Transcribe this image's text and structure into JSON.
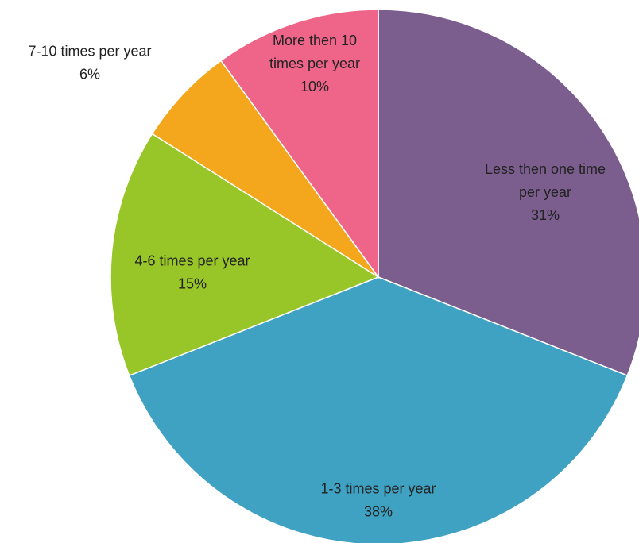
{
  "chart_data": {
    "type": "pie",
    "title": "",
    "start_angle_deg": 0,
    "direction": "clockwise",
    "slices": [
      {
        "label_lines": [
          "Less then one time",
          "per year"
        ],
        "percent_label": "31%",
        "value": 31,
        "color": "#7b5e8e"
      },
      {
        "label_lines": [
          "1-3 times per year"
        ],
        "percent_label": "38%",
        "value": 38,
        "color": "#3fa2c2"
      },
      {
        "label_lines": [
          "4-6 times per year"
        ],
        "percent_label": "15%",
        "value": 15,
        "color": "#98c528"
      },
      {
        "label_lines": [
          "7-10 times per year"
        ],
        "percent_label": "6%",
        "value": 6,
        "color": "#f4a71d"
      },
      {
        "label_lines": [
          "More then 10",
          "times per year"
        ],
        "percent_label": "10%",
        "value": 10,
        "color": "#ef6589"
      }
    ]
  }
}
